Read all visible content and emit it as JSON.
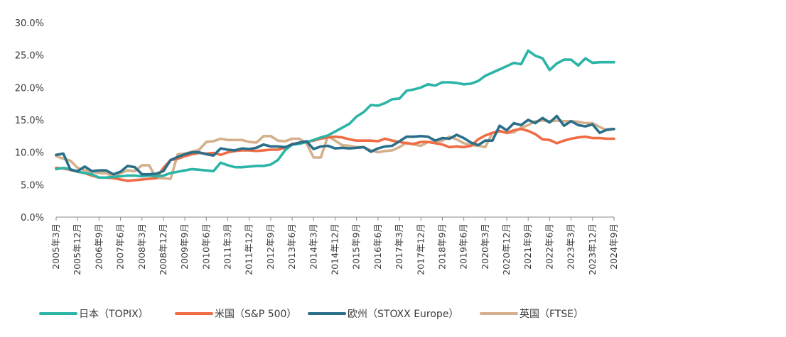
{
  "chart_data": {
    "type": "line",
    "title": "",
    "xlabel": "",
    "ylabel": "",
    "ylim": [
      0,
      30
    ],
    "yticks": [
      "0.0%",
      "5.0%",
      "10.0%",
      "15.0%",
      "20.0%",
      "25.0%",
      "30.0%"
    ],
    "ytick_values": [
      0,
      5,
      10,
      15,
      20,
      25,
      30
    ],
    "x": [
      "2005年3月",
      "2005年6月",
      "2005年9月",
      "2005年12月",
      "2006年3月",
      "2006年6月",
      "2006年9月",
      "2006年12月",
      "2007年3月",
      "2007年6月",
      "2007年9月",
      "2007年12月",
      "2008年3月",
      "2008年6月",
      "2008年9月",
      "2008年12月",
      "2009年3月",
      "2009年6月",
      "2009年9月",
      "2009年12月",
      "2010年3月",
      "2010年6月",
      "2010年9月",
      "2010年12月",
      "2011年3月",
      "2011年6月",
      "2011年9月",
      "2011年12月",
      "2012年3月",
      "2012年6月",
      "2012年9月",
      "2012年12月",
      "2013年3月",
      "2013年6月",
      "2013年9月",
      "2013年12月",
      "2014年3月",
      "2014年6月",
      "2014年9月",
      "2014年12月",
      "2015年3月",
      "2015年6月",
      "2015年9月",
      "2015年12月",
      "2016年3月",
      "2016年6月",
      "2016年9月",
      "2016年12月",
      "2017年3月",
      "2017年6月",
      "2017年9月",
      "2017年12月",
      "2018年3月",
      "2018年6月",
      "2018年9月",
      "2018年12月",
      "2019年3月",
      "2019年6月",
      "2019年9月",
      "2019年12月",
      "2020年3月",
      "2020年6月",
      "2020年9月",
      "2020年12月",
      "2021年3月",
      "2021年6月",
      "2021年9月",
      "2021年12月",
      "2022年3月",
      "2022年6月",
      "2022年9月",
      "2022年12月",
      "2023年3月",
      "2023年6月",
      "2023年9月",
      "2023年12月",
      "2024年3月",
      "2024年6月",
      "2024年9月"
    ],
    "xtick_labels": [
      "2005年3月",
      "2005年12月",
      "2006年9月",
      "2007年6月",
      "2008年3月",
      "2008年12月",
      "2009年9月",
      "2010年6月",
      "2011年3月",
      "2011年12月",
      "2012年9月",
      "2013年6月",
      "2014年3月",
      "2014年12月",
      "2015年9月",
      "2016年6月",
      "2017年3月",
      "2017年12月",
      "2018年9月",
      "2019年6月",
      "2020年3月",
      "2020年12月",
      "2021年9月",
      "2022年6月",
      "2023年3月",
      "2023年12月",
      "2024年9月"
    ],
    "legend_position": "bottom",
    "series": [
      {
        "name": "日本（TOPIX）",
        "color": "#2bb5a6",
        "values": [
          7.4,
          7.6,
          7.4,
          7.0,
          6.8,
          6.6,
          6.1,
          6.1,
          6.2,
          6.3,
          6.4,
          6.4,
          6.3,
          6.4,
          6.3,
          6.4,
          6.8,
          7.0,
          7.2,
          7.4,
          7.3,
          7.2,
          7.1,
          8.4,
          8.0,
          7.7,
          7.7,
          7.8,
          7.9,
          7.9,
          8.1,
          8.8,
          10.3,
          11.2,
          11.3,
          11.6,
          11.9,
          12.3,
          12.6,
          13.2,
          13.8,
          14.4,
          15.5,
          16.2,
          17.3,
          17.2,
          17.6,
          18.2,
          18.3,
          19.5,
          19.7,
          20.0,
          20.5,
          20.3,
          20.8,
          20.8,
          20.7,
          20.5,
          20.6,
          21.0,
          21.8,
          22.3,
          22.8,
          23.3,
          23.8,
          23.6,
          25.7,
          24.9,
          24.5,
          22.7,
          23.7,
          24.3,
          24.3,
          23.4,
          24.5,
          23.8,
          23.9,
          23.9,
          23.9
        ]
      },
      {
        "name": "米国（S&P 500）",
        "color": "#ef6c44",
        "values": [
          7.6,
          7.5,
          7.3,
          7.0,
          6.8,
          6.4,
          6.1,
          6.1,
          6.0,
          5.8,
          5.6,
          5.7,
          5.8,
          5.9,
          6.0,
          7.6,
          8.8,
          9.0,
          9.4,
          9.7,
          9.9,
          9.8,
          9.9,
          9.6,
          10.0,
          10.2,
          10.3,
          10.3,
          10.2,
          10.3,
          10.4,
          10.4,
          10.7,
          11.3,
          11.4,
          11.6,
          11.8,
          12.1,
          12.3,
          12.4,
          12.3,
          12.0,
          11.8,
          11.8,
          11.8,
          11.7,
          12.1,
          11.8,
          11.6,
          11.4,
          11.3,
          11.6,
          11.6,
          11.4,
          11.2,
          10.8,
          10.9,
          10.8,
          11.0,
          12.0,
          12.6,
          13.0,
          13.3,
          13.0,
          13.4,
          13.6,
          13.3,
          12.8,
          12.0,
          11.9,
          11.4,
          11.8,
          12.1,
          12.3,
          12.4,
          12.2,
          12.2,
          12.1,
          12.1
        ]
      },
      {
        "name": "欧州（STOXX Europe）",
        "color": "#2a6f8a",
        "values": [
          9.6,
          9.8,
          7.3,
          7.1,
          7.8,
          7.1,
          7.2,
          7.2,
          6.6,
          7.0,
          7.9,
          7.7,
          6.6,
          6.6,
          6.7,
          7.1,
          8.8,
          9.3,
          9.7,
          10.0,
          10.0,
          9.7,
          9.5,
          10.6,
          10.4,
          10.3,
          10.6,
          10.5,
          10.7,
          11.2,
          10.9,
          10.9,
          10.8,
          11.2,
          11.5,
          11.7,
          10.5,
          10.9,
          11.0,
          10.6,
          10.7,
          10.6,
          10.7,
          10.8,
          10.1,
          10.6,
          10.9,
          11.0,
          11.7,
          12.4,
          12.4,
          12.5,
          12.4,
          11.8,
          12.2,
          12.1,
          12.7,
          12.2,
          11.5,
          11.1,
          11.8,
          11.8,
          14.1,
          13.4,
          14.5,
          14.2,
          15.0,
          14.5,
          15.3,
          14.6,
          15.6,
          14.1,
          14.8,
          14.2,
          14.0,
          14.3,
          13.0,
          13.5,
          13.6
        ]
      },
      {
        "name": "英国（FTSE）",
        "color": "#d4b08c",
        "values": [
          9.4,
          9.0,
          8.7,
          7.6,
          7.2,
          7.0,
          6.8,
          6.8,
          6.2,
          6.8,
          7.2,
          7.1,
          8.0,
          8.0,
          6.0,
          6.0,
          5.9,
          9.7,
          9.8,
          10.1,
          10.4,
          11.6,
          11.7,
          12.1,
          11.9,
          11.9,
          11.9,
          11.6,
          11.5,
          12.5,
          12.5,
          11.8,
          11.7,
          12.1,
          12.1,
          11.4,
          9.2,
          9.2,
          12.5,
          11.8,
          11.1,
          11.0,
          10.8,
          10.8,
          10.3,
          10.0,
          10.2,
          10.3,
          10.8,
          11.5,
          11.2,
          11.0,
          11.6,
          11.6,
          11.8,
          12.4,
          12.0,
          11.4,
          11.1,
          11.0,
          10.8,
          13.0,
          13.2,
          13.0,
          13.1,
          13.8,
          14.2,
          14.8,
          14.9,
          14.8,
          14.9,
          14.8,
          14.8,
          14.7,
          14.5,
          14.5,
          13.9,
          13.4,
          13.6
        ]
      }
    ]
  }
}
